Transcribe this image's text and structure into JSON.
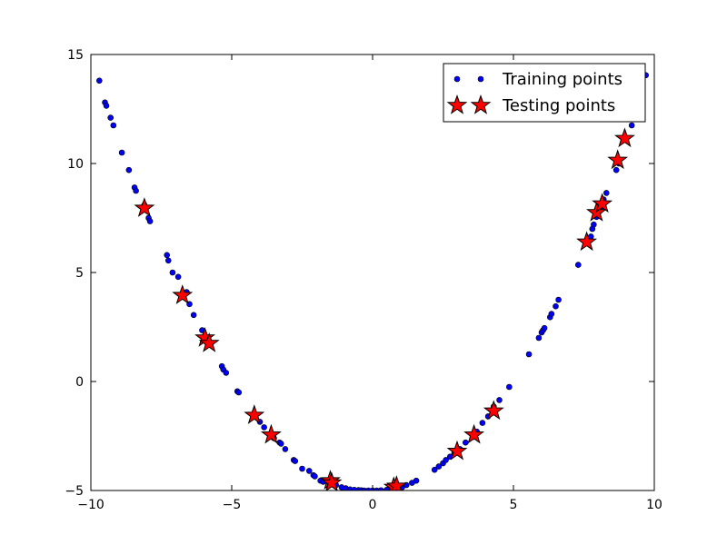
{
  "chart_data": {
    "type": "scatter",
    "title": "",
    "xlabel": "",
    "ylabel": "",
    "xlim": [
      -10,
      10
    ],
    "ylim": [
      -5,
      15
    ],
    "xticks": [
      -10,
      -5,
      0,
      5,
      10
    ],
    "yticks": [
      -5,
      0,
      5,
      10,
      15
    ],
    "tick_labels_x": [
      "−10",
      "−5",
      "0",
      "5",
      "10"
    ],
    "tick_labels_y": [
      "−5",
      "0",
      "5",
      "10",
      "15"
    ],
    "grid": false,
    "legend_position": "top-right",
    "series": [
      {
        "name": "Training points",
        "marker": "dot",
        "color": "#0000ff",
        "x": [
          -9.7,
          -9.5,
          -9.45,
          -9.3,
          -9.2,
          -8.9,
          -8.65,
          -8.45,
          -8.4,
          -8.1,
          -7.95,
          -7.9,
          -7.3,
          -7.25,
          -7.1,
          -6.9,
          -6.6,
          -6.5,
          -6.35,
          -6.05,
          -5.9,
          -5.75,
          -5.35,
          -5.3,
          -5.2,
          -4.8,
          -4.75,
          -4.2,
          -4.0,
          -3.85,
          -3.55,
          -3.5,
          -3.3,
          -3.25,
          -3.1,
          -2.8,
          -2.75,
          -2.5,
          -2.25,
          -2.1,
          -2.05,
          -1.85,
          -1.75,
          -1.5,
          -1.3,
          -1.1,
          -0.95,
          -0.8,
          -0.65,
          -0.5,
          -0.4,
          -0.3,
          -0.15,
          0.0,
          0.15,
          0.3,
          0.5,
          0.65,
          0.8,
          1.05,
          1.2,
          1.4,
          1.55,
          2.2,
          2.35,
          2.5,
          2.6,
          2.75,
          2.9,
          3.1,
          3.3,
          3.55,
          3.7,
          3.9,
          4.1,
          4.3,
          4.5,
          4.85,
          5.55,
          5.9,
          6.0,
          6.05,
          6.1,
          6.3,
          6.35,
          6.5,
          6.6,
          7.3,
          7.6,
          7.7,
          7.75,
          7.8,
          7.85,
          7.95,
          8.05,
          8.1,
          8.2,
          8.3,
          8.65,
          8.75,
          9.0,
          9.2,
          9.35,
          9.7
        ],
        "y": [
          13.8,
          12.8,
          12.65,
          12.1,
          11.75,
          10.5,
          9.7,
          8.9,
          8.75,
          8.1,
          7.5,
          7.35,
          5.8,
          5.55,
          5.0,
          4.8,
          4.1,
          3.55,
          3.05,
          2.35,
          2.0,
          1.75,
          0.7,
          0.55,
          0.4,
          -0.45,
          -0.5,
          -1.55,
          -1.85,
          -2.1,
          -2.55,
          -2.6,
          -2.8,
          -2.85,
          -3.1,
          -3.6,
          -3.65,
          -4.0,
          -4.1,
          -4.3,
          -4.35,
          -4.55,
          -4.6,
          -4.7,
          -4.75,
          -4.85,
          -4.9,
          -4.95,
          -4.97,
          -4.98,
          -4.99,
          -5.0,
          -5.0,
          -5.0,
          -5.0,
          -4.99,
          -4.97,
          -4.95,
          -4.9,
          -4.85,
          -4.75,
          -4.65,
          -4.55,
          -4.05,
          -3.9,
          -3.75,
          -3.6,
          -3.45,
          -3.3,
          -3.1,
          -2.8,
          -2.55,
          -2.3,
          -1.9,
          -1.6,
          -1.15,
          -0.85,
          -0.25,
          1.25,
          2.0,
          2.25,
          2.35,
          2.45,
          2.95,
          3.1,
          3.45,
          3.75,
          5.35,
          6.4,
          6.5,
          6.65,
          7.0,
          7.2,
          7.55,
          7.8,
          8.0,
          8.35,
          8.65,
          9.7,
          10.0,
          11.1,
          11.75,
          12.35,
          14.05
        ]
      },
      {
        "name": "Testing points",
        "marker": "star",
        "color": "#ff0000",
        "x": [
          -8.1,
          -6.75,
          -5.95,
          -5.8,
          -4.2,
          -3.6,
          -1.5,
          -1.45,
          0.75,
          0.85,
          3.0,
          3.6,
          4.3,
          7.6,
          7.95,
          8.15,
          8.7,
          8.95
        ],
        "y": [
          7.95,
          3.95,
          2.0,
          1.75,
          -1.55,
          -2.45,
          -4.55,
          -4.65,
          -4.85,
          -4.8,
          -3.2,
          -2.45,
          -1.35,
          6.4,
          7.75,
          8.15,
          10.15,
          11.15
        ]
      }
    ]
  }
}
